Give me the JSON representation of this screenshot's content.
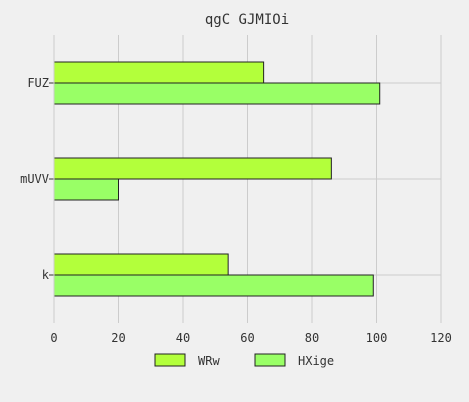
{
  "chart_data": {
    "type": "bar",
    "orientation": "horizontal",
    "title": "qgC GJMIOi",
    "xlabel": "",
    "ylabel": "",
    "categories": [
      "FUZ",
      "mUVV",
      "k"
    ],
    "series": [
      {
        "name": "WRw",
        "values": [
          65,
          86,
          54
        ],
        "color": "#b3ff3b"
      },
      {
        "name": "HXige",
        "values": [
          101,
          20,
          99
        ],
        "color": "#99ff66"
      }
    ],
    "xlim": [
      0,
      120
    ],
    "xticks": [
      0,
      20,
      40,
      60,
      80,
      100,
      120
    ],
    "grid": true,
    "legend_position": "bottom"
  }
}
